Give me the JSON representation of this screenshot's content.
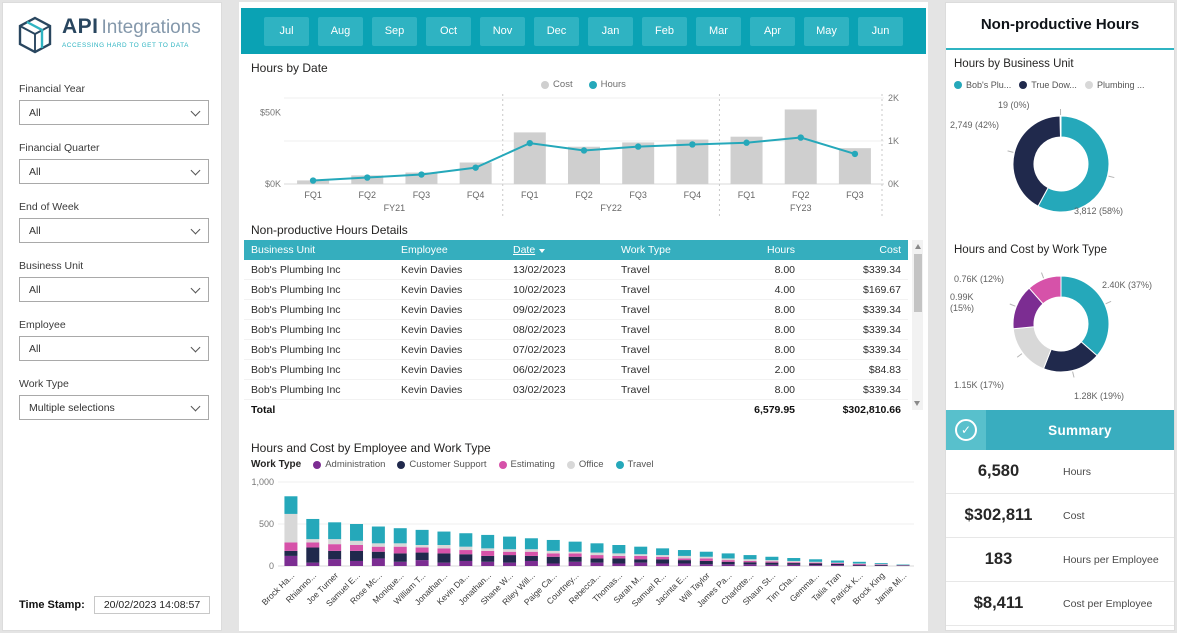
{
  "colors": {
    "teal": "#25A8BA",
    "teal_bar": "#0AA2B4",
    "teal_button": "#2FB3C2",
    "table_header": "#35AEBE",
    "navy": "#20294C",
    "purple": "#7C2D92",
    "pink": "#D652A9",
    "light_gray": "#D8D8D8",
    "bar_gray": "#CFCFCF"
  },
  "sidebar": {
    "logo_title": "API",
    "logo_subtitle": "Integrations",
    "logo_tagline": "ACCESSING HARD TO GET TO DATA",
    "filters": [
      {
        "label": "Financial Year",
        "value": "All"
      },
      {
        "label": "Financial Quarter",
        "value": "All"
      },
      {
        "label": "End of Week",
        "value": "All"
      },
      {
        "label": "Business Unit",
        "value": "All"
      },
      {
        "label": "Employee",
        "value": "All"
      },
      {
        "label": "Work Type",
        "value": "Multiple selections"
      }
    ],
    "timestamp_label": "Time Stamp:",
    "timestamp_value": "20/02/2023 14:08:57"
  },
  "month_bar": {
    "months": [
      "Jul",
      "Aug",
      "Sep",
      "Oct",
      "Nov",
      "Dec",
      "Jan",
      "Feb",
      "Mar",
      "Apr",
      "May",
      "Jun"
    ]
  },
  "table": {
    "title": "Non-productive Hours Details",
    "columns": [
      "Business Unit",
      "Employee",
      "Date",
      "Work Type",
      "Hours",
      "Cost"
    ],
    "rows": [
      [
        "Bob's Plumbing Inc",
        "Kevin Davies",
        "13/02/2023",
        "Travel",
        "8.00",
        "$339.34"
      ],
      [
        "Bob's Plumbing Inc",
        "Kevin Davies",
        "10/02/2023",
        "Travel",
        "4.00",
        "$169.67"
      ],
      [
        "Bob's Plumbing Inc",
        "Kevin Davies",
        "09/02/2023",
        "Travel",
        "8.00",
        "$339.34"
      ],
      [
        "Bob's Plumbing Inc",
        "Kevin Davies",
        "08/02/2023",
        "Travel",
        "8.00",
        "$339.34"
      ],
      [
        "Bob's Plumbing Inc",
        "Kevin Davies",
        "07/02/2023",
        "Travel",
        "8.00",
        "$339.34"
      ],
      [
        "Bob's Plumbing Inc",
        "Kevin Davies",
        "06/02/2023",
        "Travel",
        "2.00",
        "$84.83"
      ],
      [
        "Bob's Plumbing Inc",
        "Kevin Davies",
        "03/02/2023",
        "Travel",
        "8.00",
        "$339.34"
      ]
    ],
    "total": {
      "label": "Total",
      "hours": "6,579.95",
      "cost": "$302,810.66"
    }
  },
  "right_panel": {
    "title": "Non-productive Hours",
    "summary": {
      "header": "Summary",
      "rows": [
        {
          "value": "6,580",
          "label": "Hours"
        },
        {
          "value": "$302,811",
          "label": "Cost"
        },
        {
          "value": "183",
          "label": "Hours per Employee"
        },
        {
          "value": "$8,411",
          "label": "Cost per Employee"
        }
      ]
    }
  },
  "chart_data": [
    {
      "type": "combo",
      "title": "Hours by Date",
      "x": [
        "FQ1",
        "FQ2",
        "FQ3",
        "FQ4",
        "FQ1",
        "FQ2",
        "FQ3",
        "FQ4",
        "FQ1",
        "FQ2",
        "FQ3"
      ],
      "groups": [
        {
          "label": "FY21",
          "span": 4
        },
        {
          "label": "FY22",
          "span": 4
        },
        {
          "label": "FY23",
          "span": 3
        }
      ],
      "series": [
        {
          "name": "Cost",
          "type": "bar",
          "axis": "left",
          "color": "#CFCFCF",
          "values": [
            2500,
            6000,
            8000,
            15000,
            36000,
            26000,
            29000,
            31000,
            33000,
            52000,
            25000
          ]
        },
        {
          "name": "Hours",
          "type": "line",
          "axis": "right",
          "color": "#25A8BA",
          "values": [
            80,
            150,
            220,
            380,
            950,
            780,
            870,
            920,
            960,
            1080,
            700
          ]
        }
      ],
      "left_axis": {
        "ticks": [
          "$0K",
          "$50K"
        ],
        "max": 60000,
        "tick_values": [
          0,
          50000
        ]
      },
      "right_axis": {
        "ticks": [
          "0K",
          "1K",
          "2K"
        ],
        "max": 2000,
        "tick_values": [
          0,
          1000,
          2000
        ]
      }
    },
    {
      "type": "bar",
      "stacked": true,
      "title": "Hours and Cost by Employee and Work Type",
      "legend_title": "Work Type",
      "ylim": [
        0,
        1000
      ],
      "yticks": [
        {
          "label": "0",
          "value": 0
        },
        {
          "label": "500",
          "value": 500
        },
        {
          "label": "1,000",
          "value": 1000
        }
      ],
      "categories": [
        "Brock Ha...",
        "Rhianno...",
        "Joe Turner",
        "Samuel E...",
        "Rose Mc...",
        "Monique...",
        "William T...",
        "Jonathan...",
        "Kevin Da...",
        "Jonathan...",
        "Shane W...",
        "Riley Will...",
        "Paige Ca...",
        "Courtney...",
        "Rebecca...",
        "Thomas...",
        "Sarah M...",
        "Samuel R...",
        "Jacinta E...",
        "Will Taylor",
        "James Pa...",
        "Charlotte...",
        "Shaun St...",
        "Tim Cha...",
        "Gemma...",
        "Talia Tran",
        "Patrick K...",
        "Brock King",
        "Jamie Mi..."
      ],
      "series": [
        {
          "name": "Administration",
          "color": "#7C2D92",
          "values": [
            120,
            40,
            80,
            60,
            90,
            50,
            70,
            40,
            60,
            50,
            40,
            60,
            30,
            50,
            40,
            30,
            40,
            30,
            30,
            20,
            20,
            20,
            15,
            15,
            10,
            10,
            5,
            5,
            5
          ]
        },
        {
          "name": "Customer Support",
          "color": "#20294C",
          "values": [
            60,
            180,
            100,
            120,
            80,
            100,
            90,
            110,
            80,
            70,
            90,
            60,
            80,
            60,
            50,
            60,
            40,
            50,
            40,
            40,
            30,
            25,
            25,
            20,
            20,
            15,
            10,
            10,
            5
          ]
        },
        {
          "name": "Estimating",
          "color": "#D652A9",
          "values": [
            100,
            60,
            80,
            70,
            60,
            80,
            60,
            60,
            50,
            60,
            40,
            50,
            40,
            40,
            40,
            30,
            40,
            30,
            20,
            30,
            20,
            15,
            15,
            10,
            10,
            10,
            10,
            5,
            0
          ]
        },
        {
          "name": "Office",
          "color": "#D8D8D8",
          "values": [
            340,
            40,
            60,
            50,
            40,
            40,
            30,
            40,
            40,
            30,
            30,
            30,
            30,
            20,
            30,
            30,
            20,
            20,
            30,
            20,
            20,
            20,
            15,
            15,
            10,
            5,
            5,
            5,
            5
          ]
        },
        {
          "name": "Travel",
          "color": "#25A8BA",
          "values": [
            210,
            240,
            200,
            200,
            200,
            180,
            180,
            160,
            160,
            160,
            150,
            130,
            130,
            120,
            110,
            100,
            90,
            80,
            70,
            60,
            60,
            50,
            40,
            35,
            30,
            25,
            20,
            10,
            5
          ]
        }
      ]
    },
    {
      "type": "pie",
      "title": "Hours by Business Unit",
      "legend": [
        "Bob's Plu...",
        "True Dow...",
        "Plumbing ..."
      ],
      "legend_colors": [
        "#25A8BA",
        "#20294C",
        "#D8D8D8"
      ],
      "labels": [
        "Bob's Plumbing",
        "True Down Under",
        "Plumbing"
      ],
      "values": [
        3812,
        2749,
        19
      ],
      "display": [
        "3,812 (58%)",
        "2,749 (42%)",
        "19 (0%)"
      ],
      "colors": [
        "#25A8BA",
        "#20294C",
        "#D8D8D8"
      ]
    },
    {
      "type": "pie",
      "title": "Hours and Cost by Work Type",
      "labels": [
        "Travel",
        "Customer Support",
        "Office",
        "Administration",
        "Estimating"
      ],
      "values": [
        2400,
        1280,
        1150,
        990,
        760
      ],
      "display": [
        "2.40K (37%)",
        "1.28K (19%)",
        "1.15K (17%)",
        "0.99K (15%)",
        "0.76K (12%)"
      ],
      "colors": [
        "#25A8BA",
        "#20294C",
        "#D8D8D8",
        "#7C2D92",
        "#D652A9"
      ]
    }
  ]
}
